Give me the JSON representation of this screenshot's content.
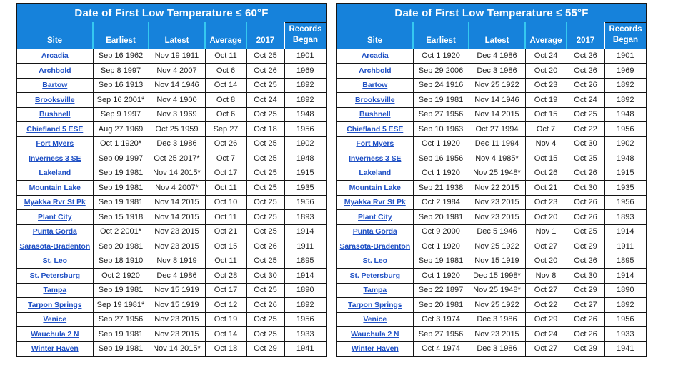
{
  "colors": {
    "header_bg": "#1682DB",
    "header_divider": "#35C8F0",
    "records_divider": "#FFFFFF",
    "table_border": "#151515",
    "link_color": "#2051C5",
    "body_text": "#1E1E1E",
    "page_bg": "#FFFFFF"
  },
  "tables": [
    {
      "title": "Date of First Low Temperature ≤ 60°F",
      "columns": {
        "site": "Site",
        "earliest": "Earliest",
        "latest": "Latest",
        "average": "Average",
        "year2017": "2017",
        "records_line1": "Records",
        "records_line2": "Began"
      },
      "rows": [
        {
          "site": "Arcadia",
          "earliest": "Sep 16 1962",
          "latest": "Nov 19 1911",
          "average": "Oct 11",
          "year2017": "Oct 25",
          "records_began": "1901"
        },
        {
          "site": "Archbold",
          "earliest": "Sep 8 1997",
          "latest": "Nov 4 2007",
          "average": "Oct 6",
          "year2017": "Oct 26",
          "records_began": "1969"
        },
        {
          "site": "Bartow",
          "earliest": "Sep 16 1913",
          "latest": "Nov 14 1946",
          "average": "Oct 14",
          "year2017": "Oct 25",
          "records_began": "1892"
        },
        {
          "site": "Brooksville",
          "earliest": "Sep 16 2001*",
          "latest": "Nov 4 1900",
          "average": "Oct 8",
          "year2017": "Oct 24",
          "records_began": "1892"
        },
        {
          "site": "Bushnell",
          "earliest": "Sep 9 1997",
          "latest": "Nov 3 1969",
          "average": "Oct 6",
          "year2017": "Oct 25",
          "records_began": "1948"
        },
        {
          "site": "Chiefland 5 ESE",
          "earliest": "Aug 27 1969",
          "latest": "Oct 25 1959",
          "average": "Sep 27",
          "year2017": "Oct 18",
          "records_began": "1956"
        },
        {
          "site": "Fort Myers",
          "earliest": "Oct 1 1920*",
          "latest": "Dec 3 1986",
          "average": "Oct 26",
          "year2017": "Oct 25",
          "records_began": "1902"
        },
        {
          "site": "Inverness 3 SE",
          "earliest": "Sep 09 1997",
          "latest": "Oct 25 2017*",
          "average": "Oct 7",
          "year2017": "Oct 25",
          "records_began": "1948"
        },
        {
          "site": "Lakeland",
          "earliest": "Sep 19 1981",
          "latest": "Nov 14 2015*",
          "average": "Oct 17",
          "year2017": "Oct 25",
          "records_began": "1915"
        },
        {
          "site": "Mountain Lake",
          "earliest": "Sep 19 1981",
          "latest": "Nov 4 2007*",
          "average": "Oct 11",
          "year2017": "Oct 25",
          "records_began": "1935"
        },
        {
          "site": "Myakka Rvr St Pk",
          "earliest": "Sep 19 1981",
          "latest": "Nov 14 2015",
          "average": "Oct 10",
          "year2017": "Oct 25",
          "records_began": "1956"
        },
        {
          "site": "Plant City",
          "earliest": "Sep 15 1918",
          "latest": "Nov 14 2015",
          "average": "Oct 11",
          "year2017": "Oct 25",
          "records_began": "1893"
        },
        {
          "site": "Punta Gorda",
          "earliest": "Oct 2 2001*",
          "latest": "Nov 23 2015",
          "average": "Oct 21",
          "year2017": "Oct 25",
          "records_began": "1914"
        },
        {
          "site": "Sarasota-Bradenton",
          "earliest": "Sep 20 1981",
          "latest": "Nov 23 2015",
          "average": "Oct 15",
          "year2017": "Oct 26",
          "records_began": "1911"
        },
        {
          "site": "St. Leo",
          "earliest": "Sep 18 1910",
          "latest": "Nov 8 1919",
          "average": "Oct 11",
          "year2017": "Oct 25",
          "records_began": "1895"
        },
        {
          "site": "St. Petersburg",
          "earliest": "Oct 2 1920",
          "latest": "Dec 4 1986",
          "average": "Oct 28",
          "year2017": "Oct 30",
          "records_began": "1914"
        },
        {
          "site": "Tampa",
          "earliest": "Sep 19 1981",
          "latest": "Nov 15 1919",
          "average": "Oct 17",
          "year2017": "Oct 25",
          "records_began": "1890"
        },
        {
          "site": "Tarpon Springs",
          "earliest": "Sep 19 1981*",
          "latest": "Nov 15 1919",
          "average": "Oct 12",
          "year2017": "Oct 26",
          "records_began": "1892"
        },
        {
          "site": "Venice",
          "earliest": "Sep 27 1956",
          "latest": "Nov 23 2015",
          "average": "Oct 19",
          "year2017": "Oct 25",
          "records_began": "1956"
        },
        {
          "site": "Wauchula 2 N",
          "earliest": "Sep 19 1981",
          "latest": "Nov 23 2015",
          "average": "Oct 14",
          "year2017": "Oct 25",
          "records_began": "1933"
        },
        {
          "site": "Winter Haven",
          "earliest": "Sep 19 1981",
          "latest": "Nov 14 2015*",
          "average": "Oct 18",
          "year2017": "Oct 29",
          "records_began": "1941"
        }
      ]
    },
    {
      "title": "Date of First Low Temperature ≤ 55°F",
      "columns": {
        "site": "Site",
        "earliest": "Earliest",
        "latest": "Latest",
        "average": "Average",
        "year2017": "2017",
        "records_line1": "Records",
        "records_line2": "Began"
      },
      "rows": [
        {
          "site": "Arcadia",
          "earliest": "Oct 1 1920",
          "latest": "Dec 4 1986",
          "average": "Oct 24",
          "year2017": "Oct 26",
          "records_began": "1901"
        },
        {
          "site": "Archbold",
          "earliest": "Sep 29 2006",
          "latest": "Dec 3 1986",
          "average": "Oct 20",
          "year2017": "Oct 26",
          "records_began": "1969"
        },
        {
          "site": "Bartow",
          "earliest": "Sep 24 1916",
          "latest": "Nov 25 1922",
          "average": "Oct 23",
          "year2017": "Oct 26",
          "records_began": "1892"
        },
        {
          "site": "Brooksville",
          "earliest": "Sep 19 1981",
          "latest": "Nov 14 1946",
          "average": "Oct 19",
          "year2017": "Oct 24",
          "records_began": "1892"
        },
        {
          "site": "Bushnell",
          "earliest": "Sep 27 1956",
          "latest": "Nov 14 2015",
          "average": "Oct 15",
          "year2017": "Oct 25",
          "records_began": "1948"
        },
        {
          "site": "Chiefland 5 ESE",
          "earliest": "Sep 10 1963",
          "latest": "Oct 27 1994",
          "average": "Oct 7",
          "year2017": "Oct 22",
          "records_began": "1956"
        },
        {
          "site": "Fort Myers",
          "earliest": "Oct 1 1920",
          "latest": "Dec 11 1994",
          "average": "Nov 4",
          "year2017": "Oct 30",
          "records_began": "1902"
        },
        {
          "site": "Inverness 3 SE",
          "earliest": "Sep 16 1956",
          "latest": "Nov 4 1985*",
          "average": "Oct 15",
          "year2017": "Oct 25",
          "records_began": "1948"
        },
        {
          "site": "Lakeland",
          "earliest": "Oct 1 1920",
          "latest": "Nov 25 1948*",
          "average": "Oct 26",
          "year2017": "Oct 26",
          "records_began": "1915"
        },
        {
          "site": "Mountain Lake",
          "earliest": "Sep 21 1938",
          "latest": "Nov 22 2015",
          "average": "Oct 21",
          "year2017": "Oct 30",
          "records_began": "1935"
        },
        {
          "site": "Myakka Rvr St Pk",
          "earliest": "Oct 2 1984",
          "latest": "Nov 23 2015",
          "average": "Oct 23",
          "year2017": "Oct 26",
          "records_began": "1956"
        },
        {
          "site": "Plant City",
          "earliest": "Sep 20 1981",
          "latest": "Nov 23 2015",
          "average": "Oct 20",
          "year2017": "Oct 26",
          "records_began": "1893"
        },
        {
          "site": "Punta Gorda",
          "earliest": "Oct 9 2000",
          "latest": "Dec 5 1946",
          "average": "Nov 1",
          "year2017": "Oct 25",
          "records_began": "1914"
        },
        {
          "site": "Sarasota-Bradenton",
          "earliest": "Oct 1 1920",
          "latest": "Nov 25 1922",
          "average": "Oct 27",
          "year2017": "Oct 29",
          "records_began": "1911"
        },
        {
          "site": "St. Leo",
          "earliest": "Sep 19 1981",
          "latest": "Nov 15 1919",
          "average": "Oct 20",
          "year2017": "Oct 26",
          "records_began": "1895"
        },
        {
          "site": "St. Petersburg",
          "earliest": "Oct 1 1920",
          "latest": "Dec 15 1998*",
          "average": "Nov 8",
          "year2017": "Oct 30",
          "records_began": "1914"
        },
        {
          "site": "Tampa",
          "earliest": "Sep 22 1897",
          "latest": "Nov 25 1948*",
          "average": "Oct 27",
          "year2017": "Oct 29",
          "records_began": "1890"
        },
        {
          "site": "Tarpon Springs",
          "earliest": "Sep 20 1981",
          "latest": "Nov 25 1922",
          "average": "Oct 22",
          "year2017": "Oct 27",
          "records_began": "1892"
        },
        {
          "site": "Venice",
          "earliest": "Oct 3 1974",
          "latest": "Dec 3 1986",
          "average": "Oct 29",
          "year2017": "Oct 26",
          "records_began": "1956"
        },
        {
          "site": "Wauchula 2 N",
          "earliest": "Sep 27 1956",
          "latest": "Nov 23 2015",
          "average": "Oct 24",
          "year2017": "Oct 26",
          "records_began": "1933"
        },
        {
          "site": "Winter Haven",
          "earliest": "Oct 4 1974",
          "latest": "Dec 3 1986",
          "average": "Oct 27",
          "year2017": "Oct 29",
          "records_began": "1941"
        }
      ]
    }
  ]
}
